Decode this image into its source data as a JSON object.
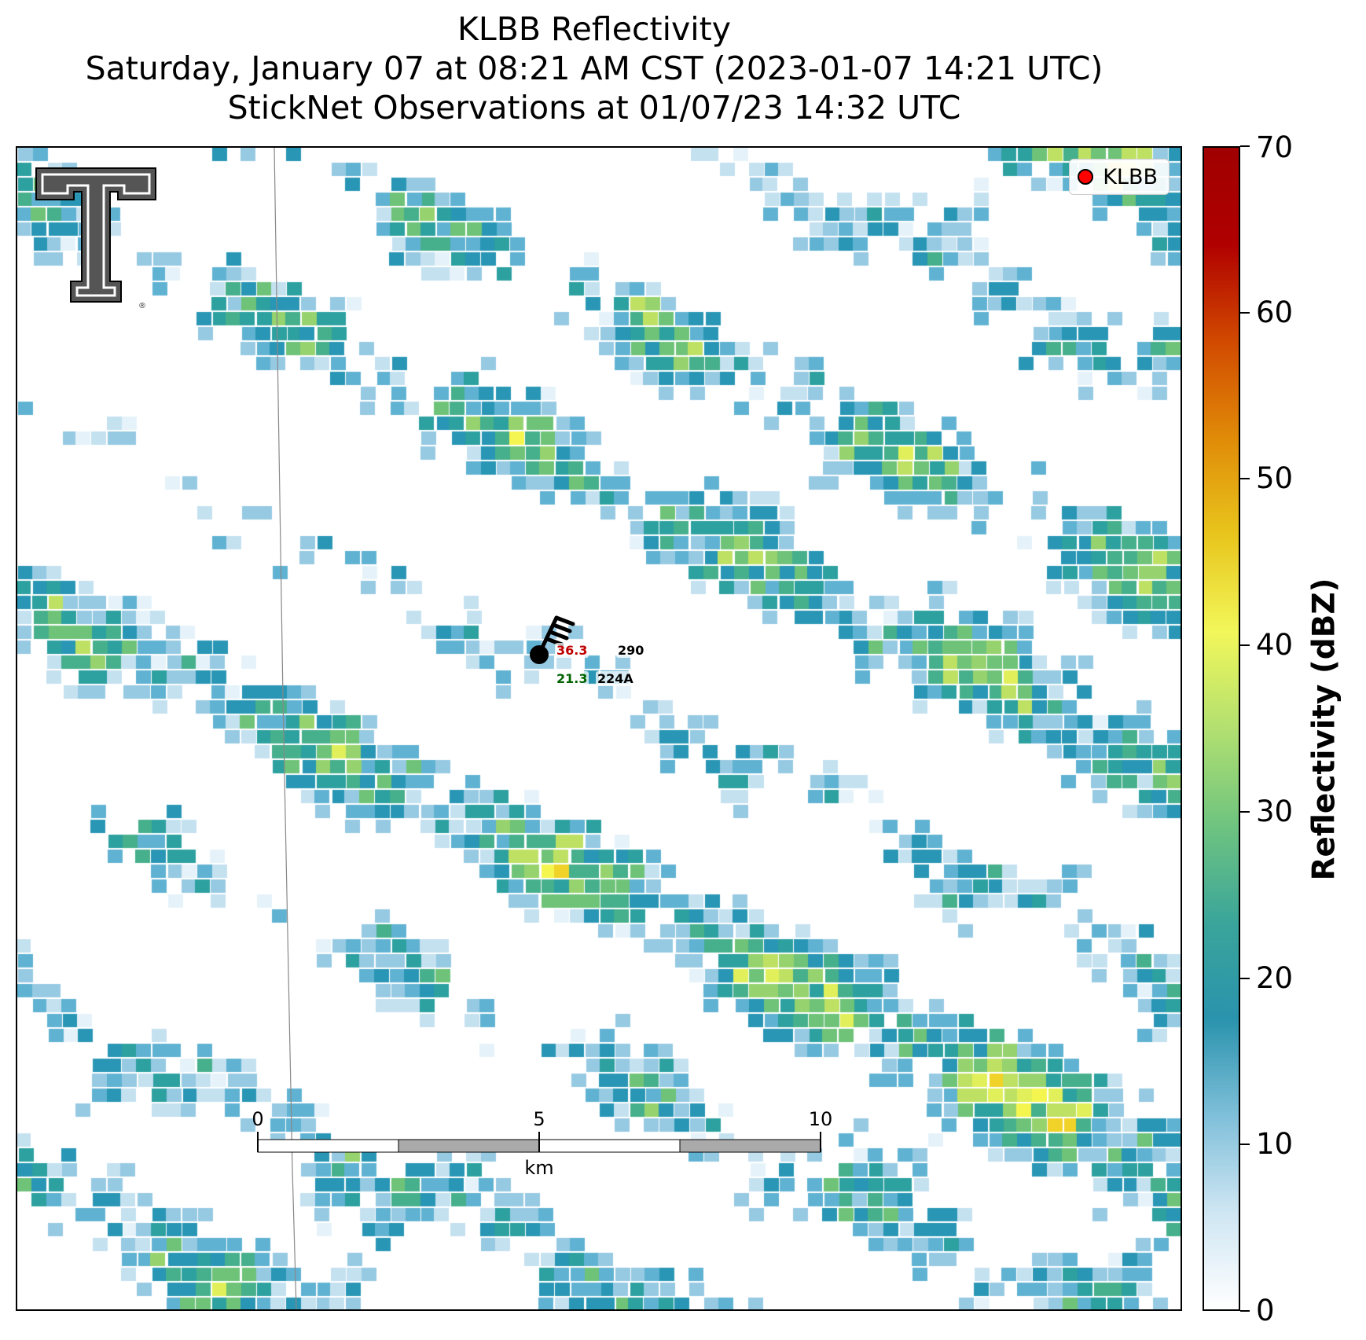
{
  "title": {
    "line1": "KLBB Reflectivity",
    "line2": "Saturday, January 07 at 08:21 AM CST (2023-01-07 14:21 UTC)",
    "line3": "StickNet Observations at 01/07/23 14:32 UTC"
  },
  "legend": {
    "label": "KLBB",
    "marker_color": "#ff0000"
  },
  "station": {
    "temperature": "36.3",
    "dewpoint": "21.3",
    "pressure_or_id_top": "290",
    "station_id": "224A",
    "temperature_color": "#c00000",
    "dewpoint_color": "#006400"
  },
  "scalebar": {
    "ticks": [
      "0",
      "5",
      "10"
    ],
    "unit": "km"
  },
  "colorbar": {
    "title": "Reflectivity (dBZ)",
    "min": 0,
    "max": 70,
    "ticks": [
      "0",
      "10",
      "20",
      "30",
      "40",
      "50",
      "60",
      "70"
    ],
    "colors": [
      "#ffffff",
      "#cfe6f3",
      "#7fbfd9",
      "#2a93ad",
      "#3aa59a",
      "#6fc47f",
      "#b2e070",
      "#f2f75a",
      "#e8c51c",
      "#e08b08",
      "#d14a00",
      "#b00000",
      "#a00000"
    ]
  },
  "logo": {
    "name": "texas-tech-double-t-logo"
  }
}
